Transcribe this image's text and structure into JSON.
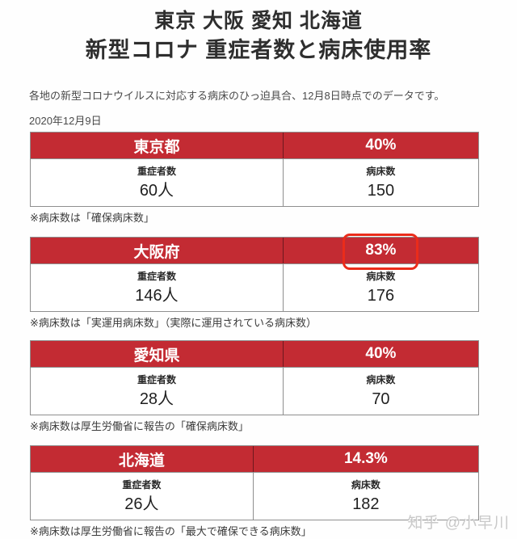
{
  "header": {
    "title_line1": "東京 大阪 愛知 北海道",
    "title_line2": "新型コロナ 重症者数と病床使用率",
    "subtitle": "各地の新型コロナウイルスに対応する病床のひっ迫具合、12月8日時点でのデータです。",
    "date": "2020年12月9日"
  },
  "cell_labels": {
    "severe": "重症者数",
    "beds": "病床数"
  },
  "tables": [
    {
      "region": "東京都",
      "usage_rate": "40%",
      "severe_value": "60人",
      "beds_value": "150",
      "note": "※病床数は「確保病床数」",
      "rate_highlighted": false
    },
    {
      "region": "大阪府",
      "usage_rate": "83%",
      "severe_value": "146人",
      "beds_value": "176",
      "note": "※病床数は「実運用病床数」（実際に運用されている病床数）",
      "rate_highlighted": true
    },
    {
      "region": "愛知県",
      "usage_rate": "40%",
      "severe_value": "28人",
      "beds_value": "70",
      "note": "※病床数は厚生労働省に報告の「確保病床数」",
      "rate_highlighted": false
    },
    {
      "region": "北海道",
      "usage_rate": "14.3%",
      "severe_value": "26人",
      "beds_value": "182",
      "note": "※病床数は厚生労働省に報告の「最大で確保できる病床数」",
      "rate_highlighted": false
    }
  ],
  "watermark": "知乎 @小早川",
  "colors": {
    "band_red": "#c32b33",
    "highlight_red": "#ea2c1b",
    "border_gray": "#8f8f8f"
  }
}
